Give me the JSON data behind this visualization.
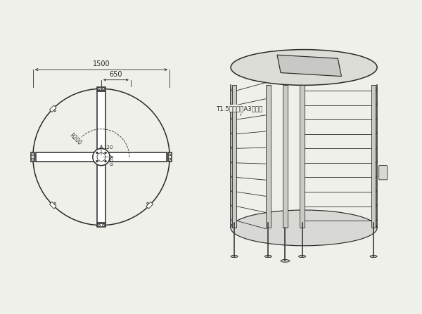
{
  "bg_color": "#f0f0eb",
  "line_color": "#2a2a2a",
  "dim_color": "#444444",
  "text_color": "#2a2a2a",
  "annotation": "T1.5内部一圈A3板加强",
  "lw_main": 1.1,
  "lw_thin": 0.6,
  "lw_med": 0.85
}
